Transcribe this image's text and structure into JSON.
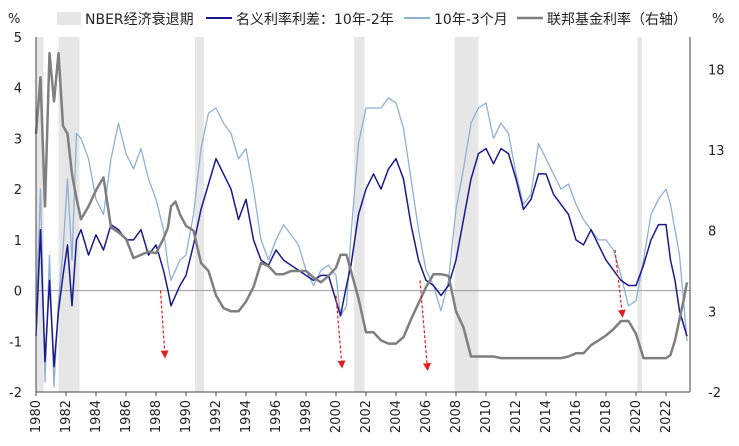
{
  "chart_data": {
    "type": "line",
    "title": "",
    "left_unit": "%",
    "right_unit": "%",
    "x_range": [
      1980,
      2023.6
    ],
    "y_left_range": [
      -2,
      5
    ],
    "y_right_range": [
      -2,
      20
    ],
    "y_left_ticks": [
      5,
      4,
      3,
      2,
      1,
      0,
      -1,
      -2
    ],
    "y_right_ticks": [
      18,
      13,
      8,
      3,
      -2
    ],
    "x_ticks": [
      "1980",
      "1982",
      "1984",
      "1986",
      "1988",
      "1990",
      "1992",
      "1994",
      "1996",
      "1998",
      "2000",
      "2002",
      "2004",
      "2006",
      "2008",
      "2010",
      "2012",
      "2014",
      "2016",
      "2018",
      "2020",
      "2022"
    ],
    "legend": {
      "recession": "NBER经济衰退期",
      "spread_2y": "名义利率利差：10年-2年",
      "spread_3m": "10年-3个月",
      "fed_funds": "联邦基金利率（右轴）"
    },
    "colors": {
      "recession": "#e6e6e6",
      "spread_2y": "#1a1a8c",
      "spread_3m": "#8fb0d6",
      "fed_funds": "#7f7f7f",
      "arrow": "#e02020",
      "zero_line": "#9a9a9a"
    },
    "recessions": [
      [
        1980.0,
        1980.5
      ],
      [
        1981.5,
        1982.9
      ],
      [
        1990.6,
        1991.2
      ],
      [
        2001.2,
        2001.9
      ],
      [
        2007.9,
        2009.5
      ],
      [
        2020.1,
        2020.4
      ]
    ],
    "series": [
      {
        "name": "名义利率利差：10年-2年",
        "x": [
          1980.0,
          1980.3,
          1980.6,
          1980.9,
          1981.2,
          1981.5,
          1981.8,
          1982.1,
          1982.4,
          1982.7,
          1983.0,
          1983.5,
          1984.0,
          1984.5,
          1985.0,
          1985.5,
          1986.0,
          1986.5,
          1987.0,
          1987.5,
          1988.0,
          1988.5,
          1988.8,
          1989.0,
          1989.3,
          1989.6,
          1990.0,
          1990.5,
          1991.0,
          1991.5,
          1992.0,
          1992.5,
          1993.0,
          1993.5,
          1994.0,
          1994.5,
          1995.0,
          1995.5,
          1996.0,
          1996.5,
          1997.0,
          1997.5,
          1998.0,
          1998.5,
          1999.0,
          1999.5,
          2000.0,
          2000.3,
          2000.7,
          2001.0,
          2001.5,
          2002.0,
          2002.5,
          2003.0,
          2003.5,
          2004.0,
          2004.5,
          2005.0,
          2005.5,
          2006.0,
          2006.5,
          2007.0,
          2007.5,
          2008.0,
          2008.5,
          2009.0,
          2009.5,
          2010.0,
          2010.5,
          2011.0,
          2011.5,
          2012.0,
          2012.5,
          2013.0,
          2013.5,
          2014.0,
          2014.5,
          2015.0,
          2015.5,
          2016.0,
          2016.5,
          2017.0,
          2017.5,
          2018.0,
          2018.5,
          2019.0,
          2019.5,
          2020.0,
          2020.5,
          2021.0,
          2021.5,
          2022.0,
          2022.3,
          2022.6,
          2022.9,
          2023.2,
          2023.4
        ],
        "values": [
          -0.9,
          1.2,
          -1.4,
          0.2,
          -1.5,
          -0.4,
          0.3,
          0.9,
          -0.3,
          1.0,
          1.2,
          0.7,
          1.1,
          0.8,
          1.3,
          1.2,
          1.0,
          1.0,
          1.2,
          0.7,
          0.9,
          0.4,
          0.0,
          -0.3,
          -0.1,
          0.1,
          0.3,
          0.9,
          1.6,
          2.1,
          2.6,
          2.3,
          2.0,
          1.4,
          1.8,
          1.0,
          0.6,
          0.5,
          0.8,
          0.6,
          0.5,
          0.4,
          0.3,
          0.2,
          0.3,
          0.3,
          -0.2,
          -0.5,
          0.1,
          0.5,
          1.5,
          2.0,
          2.3,
          2.0,
          2.4,
          2.6,
          2.2,
          1.3,
          0.6,
          0.2,
          0.1,
          -0.1,
          0.1,
          0.6,
          1.4,
          2.2,
          2.7,
          2.8,
          2.5,
          2.8,
          2.7,
          2.2,
          1.6,
          1.8,
          2.3,
          2.3,
          1.9,
          1.7,
          1.5,
          1.0,
          0.9,
          1.2,
          0.9,
          0.6,
          0.4,
          0.2,
          0.1,
          0.1,
          0.5,
          1.0,
          1.3,
          1.3,
          0.6,
          0.2,
          -0.4,
          -0.7,
          -0.9
        ]
      },
      {
        "name": "10年-3个月",
        "x": [
          1980.0,
          1980.3,
          1980.6,
          1980.9,
          1981.2,
          1981.5,
          1981.8,
          1982.1,
          1982.4,
          1982.7,
          1983.0,
          1983.5,
          1984.0,
          1984.5,
          1985.0,
          1985.5,
          1986.0,
          1986.5,
          1987.0,
          1987.5,
          1988.0,
          1988.5,
          1988.8,
          1989.0,
          1989.3,
          1989.6,
          1990.0,
          1990.5,
          1991.0,
          1991.5,
          1992.0,
          1992.5,
          1993.0,
          1993.5,
          1994.0,
          1994.5,
          1995.0,
          1995.5,
          1996.0,
          1996.5,
          1997.0,
          1997.5,
          1998.0,
          1998.5,
          1999.0,
          1999.5,
          2000.0,
          2000.3,
          2000.7,
          2001.0,
          2001.5,
          2002.0,
          2002.5,
          2003.0,
          2003.5,
          2004.0,
          2004.5,
          2005.0,
          2005.5,
          2006.0,
          2006.5,
          2007.0,
          2007.5,
          2008.0,
          2008.5,
          2009.0,
          2009.5,
          2010.0,
          2010.5,
          2011.0,
          2011.5,
          2012.0,
          2012.5,
          2013.0,
          2013.5,
          2014.0,
          2014.5,
          2015.0,
          2015.5,
          2016.0,
          2016.5,
          2017.0,
          2017.5,
          2018.0,
          2018.5,
          2019.0,
          2019.5,
          2020.0,
          2020.5,
          2021.0,
          2021.5,
          2022.0,
          2022.3,
          2022.6,
          2022.9,
          2023.2,
          2023.4
        ],
        "values": [
          -0.5,
          2.0,
          -1.8,
          0.7,
          -1.9,
          -0.2,
          0.8,
          2.2,
          0.6,
          3.1,
          3.0,
          2.6,
          1.8,
          1.5,
          2.6,
          3.3,
          2.7,
          2.4,
          2.8,
          2.2,
          1.8,
          1.2,
          0.5,
          0.2,
          0.4,
          0.6,
          0.7,
          1.5,
          2.8,
          3.5,
          3.6,
          3.3,
          3.1,
          2.6,
          2.8,
          2.0,
          1.0,
          0.6,
          1.0,
          1.3,
          1.1,
          0.9,
          0.4,
          0.1,
          0.4,
          0.5,
          0.3,
          -0.5,
          -0.3,
          1.1,
          2.9,
          3.6,
          3.6,
          3.6,
          3.8,
          3.7,
          3.2,
          2.2,
          1.2,
          0.4,
          0.1,
          -0.4,
          0.2,
          1.6,
          2.4,
          3.3,
          3.6,
          3.7,
          3.0,
          3.3,
          3.1,
          2.3,
          1.7,
          1.9,
          2.9,
          2.6,
          2.3,
          2.0,
          2.1,
          1.7,
          1.4,
          1.2,
          1.0,
          1.0,
          0.8,
          0.3,
          -0.3,
          -0.2,
          0.6,
          1.5,
          1.8,
          2.0,
          1.7,
          1.2,
          0.7,
          -0.3,
          -1.0
        ]
      },
      {
        "name": "联邦基金利率（右轴）",
        "x": [
          1980.0,
          1980.3,
          1980.6,
          1980.9,
          1981.2,
          1981.5,
          1981.8,
          1982.1,
          1982.4,
          1982.7,
          1983.0,
          1983.5,
          1984.0,
          1984.5,
          1985.0,
          1985.5,
          1986.0,
          1986.5,
          1987.0,
          1987.5,
          1988.0,
          1988.5,
          1988.8,
          1989.0,
          1989.3,
          1989.6,
          1990.0,
          1990.5,
          1991.0,
          1991.5,
          1992.0,
          1992.5,
          1993.0,
          1993.5,
          1994.0,
          1994.5,
          1995.0,
          1995.5,
          1996.0,
          1996.5,
          1997.0,
          1997.5,
          1998.0,
          1998.5,
          1999.0,
          1999.5,
          2000.0,
          2000.3,
          2000.7,
          2001.0,
          2001.5,
          2002.0,
          2002.5,
          2003.0,
          2003.5,
          2004.0,
          2004.5,
          2005.0,
          2005.5,
          2006.0,
          2006.5,
          2007.0,
          2007.5,
          2008.0,
          2008.5,
          2009.0,
          2009.5,
          2010.0,
          2010.5,
          2011.0,
          2011.5,
          2012.0,
          2012.5,
          2013.0,
          2013.5,
          2014.0,
          2014.5,
          2015.0,
          2015.5,
          2016.0,
          2016.5,
          2017.0,
          2017.5,
          2018.0,
          2018.5,
          2019.0,
          2019.5,
          2020.0,
          2020.5,
          2021.0,
          2021.5,
          2022.0,
          2022.3,
          2022.6,
          2022.9,
          2023.2,
          2023.4
        ],
        "values": [
          14.0,
          17.5,
          9.5,
          19.0,
          16.0,
          19.0,
          14.5,
          14.0,
          11.5,
          10.0,
          8.7,
          9.5,
          10.5,
          11.3,
          8.2,
          7.9,
          7.5,
          6.3,
          6.5,
          6.7,
          6.6,
          7.5,
          8.2,
          9.5,
          9.8,
          9.0,
          8.3,
          8.0,
          6.0,
          5.5,
          4.0,
          3.2,
          3.0,
          3.0,
          3.6,
          4.5,
          6.0,
          5.8,
          5.3,
          5.3,
          5.5,
          5.5,
          5.5,
          5.1,
          4.8,
          5.2,
          5.7,
          6.5,
          6.5,
          5.5,
          3.8,
          1.7,
          1.7,
          1.2,
          1.0,
          1.0,
          1.4,
          2.5,
          3.5,
          4.5,
          5.3,
          5.3,
          5.2,
          3.0,
          2.0,
          0.2,
          0.2,
          0.2,
          0.2,
          0.1,
          0.1,
          0.1,
          0.1,
          0.1,
          0.1,
          0.1,
          0.1,
          0.1,
          0.2,
          0.4,
          0.4,
          0.9,
          1.2,
          1.5,
          1.9,
          2.4,
          2.4,
          1.6,
          0.1,
          0.1,
          0.1,
          0.1,
          0.3,
          1.2,
          2.5,
          3.8,
          4.8
        ]
      }
    ],
    "arrows": [
      {
        "from": [
          1988.3,
          0.0
        ],
        "to": [
          1988.6,
          -1.3
        ]
      },
      {
        "from": [
          2000.0,
          -0.1
        ],
        "to": [
          2000.4,
          -1.5
        ]
      },
      {
        "from": [
          2005.6,
          0.2
        ],
        "to": [
          2006.1,
          -1.55
        ]
      },
      {
        "from": [
          2018.6,
          0.8
        ],
        "to": [
          2019.1,
          -0.5
        ]
      }
    ]
  }
}
